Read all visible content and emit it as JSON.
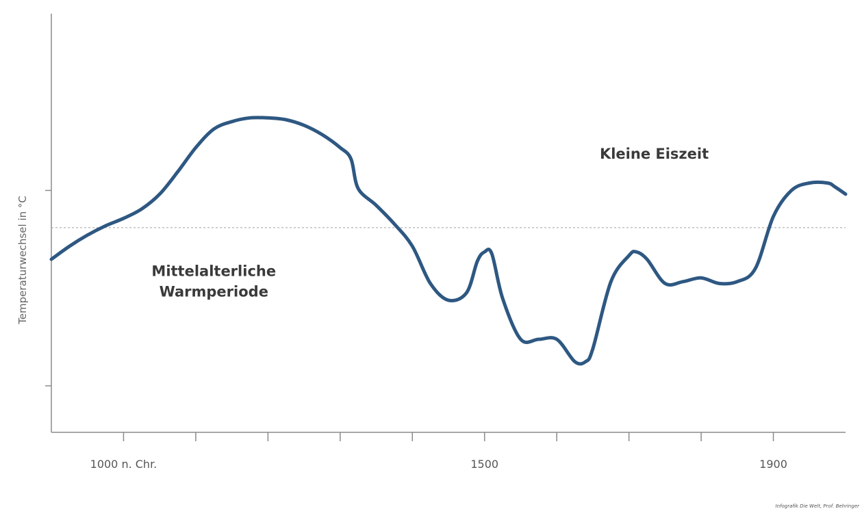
{
  "chart_data": {
    "type": "line",
    "title": "",
    "xlabel": "",
    "ylabel": "Temperaturwechsel in °C",
    "x_tick_labels": [
      {
        "x": 1000,
        "label": "1000 n. Chr."
      },
      {
        "x": 1500,
        "label": "1500"
      },
      {
        "x": 1900,
        "label": "1900"
      }
    ],
    "x_minor_ticks": [
      1000,
      1100,
      1200,
      1300,
      1400,
      1500,
      1600,
      1700,
      1800,
      1900
    ],
    "xlim": [
      900,
      2000
    ],
    "ylim": [
      -1.1,
      1.15
    ],
    "y_ticks": [
      0.2,
      -0.85
    ],
    "reference_line": 0,
    "grid": false,
    "line_color": "#2e5882",
    "reference_color": "#aaaaaa",
    "annotations": [
      {
        "lines": [
          "Mittelalterliche",
          "Warmperiode"
        ],
        "x": 1125,
        "y": -0.26
      },
      {
        "lines": [
          "Kleine Eiszeit"
        ],
        "x": 1735,
        "y": 0.37
      }
    ],
    "series": [
      {
        "x": [
          900,
          925,
          950,
          975,
          1000,
          1025,
          1050,
          1075,
          1100,
          1125,
          1150,
          1175,
          1200,
          1225,
          1250,
          1275,
          1300,
          1315,
          1325,
          1350,
          1375,
          1400,
          1425,
          1450,
          1475,
          1490,
          1500,
          1510,
          1525,
          1550,
          1575,
          1600,
          1625,
          1640,
          1650,
          1675,
          1700,
          1710,
          1725,
          1750,
          1775,
          1800,
          1825,
          1850,
          1875,
          1900,
          1925,
          1950,
          1975,
          1985,
          2000
        ],
        "y": [
          -0.17,
          -0.1,
          -0.04,
          0.01,
          0.05,
          0.1,
          0.18,
          0.3,
          0.43,
          0.53,
          0.57,
          0.59,
          0.59,
          0.58,
          0.55,
          0.5,
          0.43,
          0.37,
          0.21,
          0.12,
          0.02,
          -0.1,
          -0.3,
          -0.39,
          -0.35,
          -0.18,
          -0.13,
          -0.14,
          -0.38,
          -0.6,
          -0.6,
          -0.6,
          -0.72,
          -0.72,
          -0.65,
          -0.29,
          -0.15,
          -0.13,
          -0.17,
          -0.3,
          -0.29,
          -0.27,
          -0.3,
          -0.29,
          -0.22,
          0.06,
          0.2,
          0.24,
          0.24,
          0.22,
          0.18
        ]
      }
    ]
  },
  "credit": "Infografik Die Welt, Prof. Behringer"
}
